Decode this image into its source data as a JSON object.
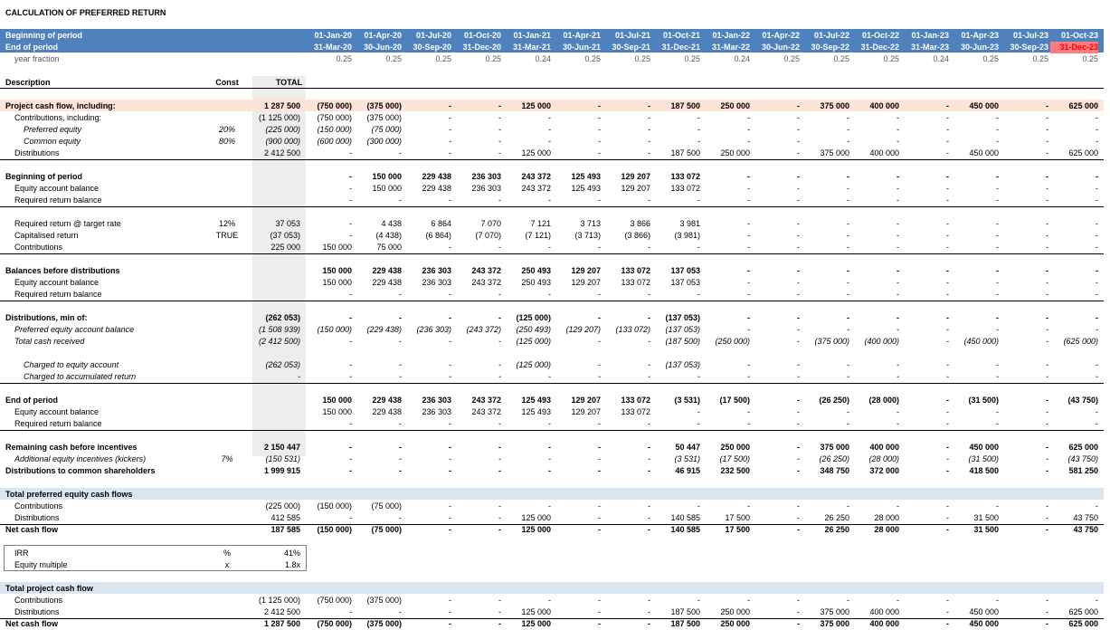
{
  "title": "CALCULATION OF PREFERRED RETURN",
  "colors": {
    "header_band": "#4f81bd",
    "peach_band": "#fce4d6",
    "section_band": "#dce6f1",
    "total_column": "#ededed",
    "highlight_red": "#ff0000"
  },
  "header": {
    "description_label": "Description",
    "const_label": "Const",
    "total_label": "TOTAL"
  },
  "period_rows": [
    {
      "label": "Beginning of period",
      "bold": true,
      "white": true,
      "values": [
        "01-Jan-20",
        "01-Apr-20",
        "01-Jul-20",
        "01-Oct-20",
        "01-Jan-21",
        "01-Apr-21",
        "01-Jul-21",
        "01-Oct-21",
        "01-Jan-22",
        "01-Apr-22",
        "01-Jul-22",
        "01-Oct-22",
        "01-Jan-23",
        "01-Apr-23",
        "01-Jul-23",
        "01-Oct-23"
      ]
    },
    {
      "label": "End of period",
      "bold": true,
      "white": true,
      "values": [
        "31-Mar-20",
        "30-Jun-20",
        "30-Sep-20",
        "31-Dec-20",
        "31-Mar-21",
        "30-Jun-21",
        "30-Sep-21",
        "31-Dec-21",
        "31-Mar-22",
        "30-Jun-22",
        "30-Sep-22",
        "31-Dec-22",
        "31-Mar-23",
        "30-Jun-23",
        "30-Sep-23",
        "31-Dec-23"
      ]
    },
    {
      "label": "year fraction",
      "grey": true,
      "indent": 1,
      "values": [
        "0.25",
        "0.25",
        "0.25",
        "0.25",
        "0.24",
        "0.25",
        "0.25",
        "0.25",
        "0.24",
        "0.25",
        "0.25",
        "0.25",
        "0.24",
        "0.25",
        "0.25",
        "0.25"
      ]
    }
  ],
  "rows": [
    {
      "id": "project-cash-flow",
      "label": "Project cash flow, including:",
      "bold": true,
      "peach": true,
      "total": "1 287 500",
      "values": [
        "(750 000)",
        "(375 000)",
        "-",
        "-",
        "125 000",
        "-",
        "-",
        "187 500",
        "250 000",
        "-",
        "375 000",
        "400 000",
        "-",
        "450 000",
        "-",
        "625 000"
      ]
    },
    {
      "id": "contributions-including",
      "label": "Contributions, including:",
      "indent": 1,
      "total": "(1 125 000)",
      "values": [
        "(750 000)",
        "(375 000)",
        "-",
        "-",
        "-",
        "-",
        "-",
        "-",
        "-",
        "-",
        "-",
        "-",
        "-",
        "-",
        "-",
        "-"
      ]
    },
    {
      "id": "preferred-equity",
      "label": "Preferred equity",
      "indent": 2,
      "italic": true,
      "const": "20%",
      "total": "(225 000)",
      "values": [
        "(150 000)",
        "(75 000)",
        "-",
        "-",
        "-",
        "-",
        "-",
        "-",
        "-",
        "-",
        "-",
        "-",
        "-",
        "-",
        "-",
        "-"
      ]
    },
    {
      "id": "common-equity",
      "label": "Common equity",
      "indent": 2,
      "italic": true,
      "const": "80%",
      "total": "(900 000)",
      "values": [
        "(600 000)",
        "(300 000)",
        "-",
        "-",
        "-",
        "-",
        "-",
        "-",
        "-",
        "-",
        "-",
        "-",
        "-",
        "-",
        "-",
        "-"
      ]
    },
    {
      "id": "distributions",
      "label": "Distributions",
      "indent": 1,
      "total": "2 412 500",
      "underline": true,
      "values": [
        "-",
        "-",
        "-",
        "-",
        "125 000",
        "-",
        "-",
        "187 500",
        "250 000",
        "-",
        "375 000",
        "400 000",
        "-",
        "450 000",
        "-",
        "625 000"
      ]
    },
    {
      "id": "bop",
      "label": "Beginning of period",
      "bold": true,
      "total": "",
      "values": [
        "-",
        "150 000",
        "229 438",
        "236 303",
        "243 372",
        "125 493",
        "129 207",
        "133 072",
        "-",
        "-",
        "-",
        "-",
        "-",
        "-",
        "-",
        "-"
      ]
    },
    {
      "id": "bop-equity",
      "label": "Equity account balance",
      "indent": 1,
      "total": "",
      "values": [
        "-",
        "150 000",
        "229 438",
        "236 303",
        "243 372",
        "125 493",
        "129 207",
        "133 072",
        "-",
        "-",
        "-",
        "-",
        "-",
        "-",
        "-",
        "-"
      ]
    },
    {
      "id": "bop-required",
      "label": "Required return balance",
      "indent": 1,
      "total": "",
      "underline": true,
      "values": [
        "-",
        "-",
        "-",
        "-",
        "-",
        "-",
        "-",
        "-",
        "-",
        "-",
        "-",
        "-",
        "-",
        "-",
        "-",
        "-"
      ]
    },
    {
      "id": "required-return",
      "label": "Required return @ target rate",
      "indent": 1,
      "const": "12%",
      "total": "37 053",
      "values": [
        "-",
        "4 438",
        "6 864",
        "7 070",
        "7 121",
        "3 713",
        "3 866",
        "3 981",
        "-",
        "-",
        "-",
        "-",
        "-",
        "-",
        "-",
        "-"
      ]
    },
    {
      "id": "capitalised-return",
      "label": "Capitalised return",
      "indent": 1,
      "const": "TRUE",
      "total": "(37 053)",
      "values": [
        "-",
        "(4 438)",
        "(6 864)",
        "(7 070)",
        "(7 121)",
        "(3 713)",
        "(3 866)",
        "(3 981)",
        "-",
        "-",
        "-",
        "-",
        "-",
        "-",
        "-",
        "-"
      ]
    },
    {
      "id": "contributions-2",
      "label": "Contributions",
      "indent": 1,
      "total": "225 000",
      "underline": true,
      "values": [
        "150 000",
        "75 000",
        "-",
        "-",
        "-",
        "-",
        "-",
        "-",
        "-",
        "-",
        "-",
        "-",
        "-",
        "-",
        "-",
        "-"
      ]
    },
    {
      "id": "bbd",
      "label": "Balances before distributions",
      "bold": true,
      "total": "",
      "values": [
        "150 000",
        "229 438",
        "236 303",
        "243 372",
        "250 493",
        "129 207",
        "133 072",
        "137 053",
        "-",
        "-",
        "-",
        "-",
        "-",
        "-",
        "-",
        "-"
      ]
    },
    {
      "id": "bbd-equity",
      "label": "Equity account balance",
      "indent": 1,
      "total": "",
      "values": [
        "150 000",
        "229 438",
        "236 303",
        "243 372",
        "250 493",
        "129 207",
        "133 072",
        "137 053",
        "-",
        "-",
        "-",
        "-",
        "-",
        "-",
        "-",
        "-"
      ]
    },
    {
      "id": "bbd-required",
      "label": "Required return balance",
      "indent": 1,
      "total": "",
      "underline": true,
      "values": [
        "-",
        "-",
        "-",
        "-",
        "-",
        "-",
        "-",
        "-",
        "-",
        "-",
        "-",
        "-",
        "-",
        "-",
        "-",
        "-"
      ]
    },
    {
      "id": "dist-min",
      "label": "Distributions, min of:",
      "bold": true,
      "total": "(262 053)",
      "values": [
        "-",
        "-",
        "-",
        "-",
        "(125 000)",
        "-",
        "-",
        "(137 053)",
        "-",
        "-",
        "-",
        "-",
        "-",
        "-",
        "-",
        "-"
      ]
    },
    {
      "id": "pref-balance",
      "label": "Preferred equity account balance",
      "indent": 1,
      "italic": true,
      "total": "(1 508 939)",
      "values": [
        "(150 000)",
        "(229 438)",
        "(236 303)",
        "(243 372)",
        "(250 493)",
        "(129 207)",
        "(133 072)",
        "(137 053)",
        "-",
        "-",
        "-",
        "-",
        "-",
        "-",
        "-",
        "-"
      ]
    },
    {
      "id": "total-cash",
      "label": "Total cash received",
      "indent": 1,
      "italic": true,
      "total": "(2 412 500)",
      "values": [
        "-",
        "-",
        "-",
        "-",
        "(125 000)",
        "-",
        "-",
        "(187 500)",
        "(250 000)",
        "-",
        "(375 000)",
        "(400 000)",
        "-",
        "(450 000)",
        "-",
        "(625 000)"
      ]
    },
    {
      "id": "charged-equity",
      "label": "Charged to equity account",
      "indent": 2,
      "italic": true,
      "total": "(262 053)",
      "values": [
        "-",
        "-",
        "-",
        "-",
        "(125 000)",
        "-",
        "-",
        "(137 053)",
        "-",
        "-",
        "-",
        "-",
        "-",
        "-",
        "-",
        "-"
      ]
    },
    {
      "id": "charged-accum",
      "label": "Charged to accumulated return",
      "indent": 2,
      "italic": true,
      "total": "-",
      "underline": true,
      "values": [
        "-",
        "-",
        "-",
        "-",
        "-",
        "-",
        "-",
        "-",
        "-",
        "-",
        "-",
        "-",
        "-",
        "-",
        "-",
        "-"
      ]
    },
    {
      "id": "eop",
      "label": "End of period",
      "bold": true,
      "total": "",
      "values": [
        "150 000",
        "229 438",
        "236 303",
        "243 372",
        "125 493",
        "129 207",
        "133 072",
        "(3 531)",
        "(17 500)",
        "-",
        "(26 250)",
        "(28 000)",
        "-",
        "(31 500)",
        "-",
        "(43 750)"
      ]
    },
    {
      "id": "eop-equity",
      "label": "Equity account balance",
      "indent": 1,
      "total": "",
      "values": [
        "150 000",
        "229 438",
        "236 303",
        "243 372",
        "125 493",
        "129 207",
        "133 072",
        "-",
        "-",
        "-",
        "-",
        "-",
        "-",
        "-",
        "-",
        "-"
      ]
    },
    {
      "id": "eop-required",
      "label": "Required return balance",
      "indent": 1,
      "total": "",
      "underline": true,
      "values": [
        "-",
        "-",
        "-",
        "-",
        "-",
        "-",
        "-",
        "-",
        "-",
        "-",
        "-",
        "-",
        "-",
        "-",
        "-",
        "-"
      ]
    },
    {
      "id": "remaining-cash",
      "label": "Remaining cash before incentives",
      "bold": true,
      "total": "2 150 447",
      "values": [
        "-",
        "-",
        "-",
        "-",
        "-",
        "-",
        "-",
        "50 447",
        "250 000",
        "-",
        "375 000",
        "400 000",
        "-",
        "450 000",
        "-",
        "625 000"
      ]
    },
    {
      "id": "kickers",
      "label": "Additional equity incentives (kickers)",
      "indent": 1,
      "italic": true,
      "const": "7%",
      "total": "(150 531)",
      "values": [
        "-",
        "-",
        "-",
        "-",
        "-",
        "-",
        "-",
        "(3 531)",
        "(17 500)",
        "-",
        "(26 250)",
        "(28 000)",
        "-",
        "(31 500)",
        "-",
        "(43 750)"
      ]
    },
    {
      "id": "dist-common",
      "label": "Distributions to common shareholders",
      "bold": true,
      "total": "1 999 915",
      "values": [
        "-",
        "-",
        "-",
        "-",
        "-",
        "-",
        "-",
        "46 915",
        "232 500",
        "-",
        "348 750",
        "372 000",
        "-",
        "418 500",
        "-",
        "581 250"
      ]
    },
    {
      "id": "pref-cf-header",
      "label": "Total preferred equity cash flows",
      "bold": true,
      "band": true,
      "total": "",
      "values": [
        "",
        "",
        "",
        "",
        "",
        "",
        "",
        "",
        "",
        "",
        "",
        "",
        "",
        "",
        "",
        ""
      ]
    },
    {
      "id": "pref-contributions",
      "label": "Contributions",
      "indent": 1,
      "total": "(225 000)",
      "values": [
        "(150 000)",
        "(75 000)",
        "-",
        "-",
        "-",
        "-",
        "-",
        "-",
        "-",
        "-",
        "-",
        "-",
        "-",
        "-",
        "-",
        "-"
      ]
    },
    {
      "id": "pref-distributions",
      "label": "Distributions",
      "indent": 1,
      "total": "412 585",
      "underline": true,
      "values": [
        "-",
        "-",
        "-",
        "-",
        "125 000",
        "-",
        "-",
        "140 585",
        "17 500",
        "-",
        "26 250",
        "28 000",
        "-",
        "31 500",
        "-",
        "43 750"
      ]
    },
    {
      "id": "pref-net",
      "label": "Net cash flow",
      "bold": true,
      "total": "187 585",
      "values": [
        "(150 000)",
        "(75 000)",
        "-",
        "-",
        "125 000",
        "-",
        "-",
        "140 585",
        "17 500",
        "-",
        "26 250",
        "28 000",
        "-",
        "31 500",
        "-",
        "43 750"
      ]
    },
    {
      "id": "irr",
      "label": "IRR",
      "indent": 1,
      "const": "%",
      "total": "41%",
      "box": true,
      "values": [
        "",
        "",
        "",
        "",
        "",
        "",
        "",
        "",
        "",
        "",
        "",
        "",
        "",
        "",
        "",
        ""
      ]
    },
    {
      "id": "equity-multiple",
      "label": "Equity multiple",
      "indent": 1,
      "const": "x",
      "total": "1.8x",
      "box": true,
      "values": [
        "",
        "",
        "",
        "",
        "",
        "",
        "",
        "",
        "",
        "",
        "",
        "",
        "",
        "",
        "",
        ""
      ]
    },
    {
      "id": "proj-cf-header",
      "label": "Total project cash flow",
      "bold": true,
      "band": true,
      "total": "",
      "values": [
        "",
        "",
        "",
        "",
        "",
        "",
        "",
        "",
        "",
        "",
        "",
        "",
        "",
        "",
        "",
        ""
      ]
    },
    {
      "id": "proj-contributions",
      "label": "Contributions",
      "indent": 1,
      "total": "(1 125 000)",
      "values": [
        "(750 000)",
        "(375 000)",
        "-",
        "-",
        "-",
        "-",
        "-",
        "-",
        "-",
        "-",
        "-",
        "-",
        "-",
        "-",
        "-",
        "-"
      ]
    },
    {
      "id": "proj-distributions",
      "label": "Distributions",
      "indent": 1,
      "total": "2 412 500",
      "underline": true,
      "values": [
        "-",
        "-",
        "-",
        "-",
        "125 000",
        "-",
        "-",
        "187 500",
        "250 000",
        "-",
        "375 000",
        "400 000",
        "-",
        "450 000",
        "-",
        "625 000"
      ]
    },
    {
      "id": "proj-net",
      "label": "Net cash flow",
      "bold": true,
      "total": "1 287 500",
      "values": [
        "(750 000)",
        "(375 000)",
        "-",
        "-",
        "125 000",
        "-",
        "-",
        "187 500",
        "250 000",
        "-",
        "375 000",
        "400 000",
        "-",
        "450 000",
        "-",
        "625 000"
      ]
    }
  ]
}
